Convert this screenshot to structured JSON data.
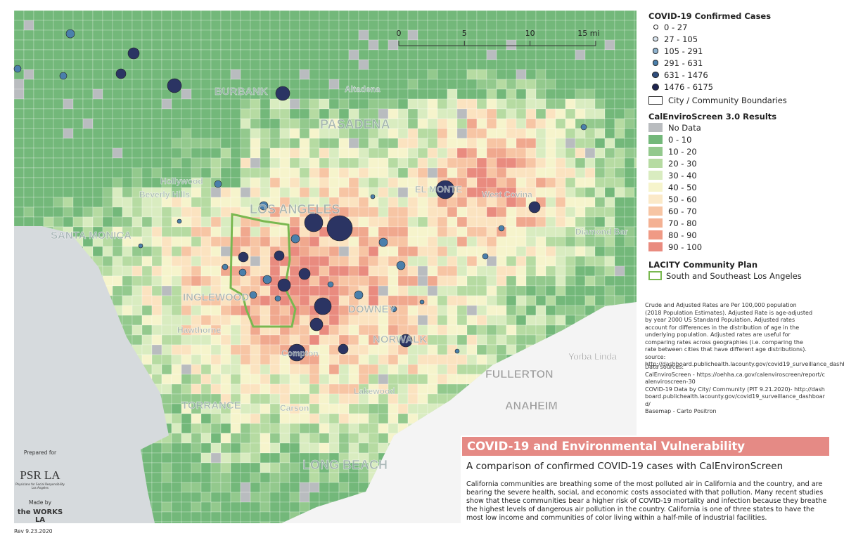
{
  "map": {
    "scale_bar": [
      "0",
      "5",
      "10",
      "15 mi"
    ],
    "places": [
      "BURBANK",
      "PASADENA",
      "Altadena",
      "Hollywood",
      "Beverly Hills",
      "LOS ANGELES",
      "SANTA MONICA",
      "EL MONTE",
      "West Covina",
      "Diamond Bar",
      "INGLEWOOD",
      "Hawthorne",
      "DOWNEY",
      "NORWALK",
      "Compton",
      "TORRANCE",
      "Carson",
      "Lakewood",
      "LONG BEACH",
      "Yorba Linda",
      "FULLERTON",
      "ANAHEIM"
    ]
  },
  "legend": {
    "covid_title": "COVID-19 Confirmed Cases",
    "covid_items": [
      "0 - 27",
      "27 - 105",
      "105 - 291",
      "291 - 631",
      "631 - 1476",
      "1476 - 6175"
    ],
    "boundaries": "City / Community Boundaries",
    "ces_title": "CalEnviroScreen 3.0 Results",
    "ces_items": [
      "No Data",
      "0 - 10",
      "10 - 20",
      "20 - 30",
      "30 - 40",
      "40 - 50",
      "50 - 60",
      "60 - 70",
      "70 - 80",
      "80 - 90",
      "90 - 100"
    ],
    "plan_title": "LACITY Community Plan",
    "plan_item": "South and Southeast Los Angeles"
  },
  "notes": {
    "rates": "Crude and Adjusted Rates are Per 100,000 population (2018 Population Estimates). Adjusted Rate is age-adjusted by year 2000 US Standard Population. Adjusted rates account for differences in the distribution of age in the underlying population. Adjusted rates are useful for comparing rates across geographies (i.e. comparing the rate between cities that have different age distributions). source: http://dashboard.publichealth.lacounty.gov/covid19_surveillance_dashboard/",
    "sources": [
      "Data sources:",
      "CalEnviroScreen - https://oehha.ca.gov/calenviroscreen/report/calenviroscreen-30",
      "COVID-19 Data by City/ Community (PIT 9.21.2020)- http://dashboard.publichealth.lacounty.gov/covid19_surveillance_dashboard/",
      "Basemap - Carto Positron"
    ]
  },
  "header": {
    "title": "COVID-19 and Environmental Vulnerability",
    "subtitle": "A comparison of confirmed COVID-19 cases with CalEnvironScreen",
    "body": "California communities are breathing some of the most polluted air in California and the country, and are bearing the severe health, social, and economic costs associated with that pollution. Many recent studies show that these communities bear a higher risk of COVID-19 mortality and infection because they breathe the highest levels of dangerous air pollution in the country. California is one of three states to have the most low income and communities of color living within a half-mile of industrial facilities."
  },
  "credits": {
    "prepared": "Prepared for",
    "psr": "PSR LA",
    "psr_sub": "Physicians for Social Responsibility Los Angeles",
    "made": "Made by",
    "works": "the WORKS LA",
    "rev": "Rev 9.23.2020"
  }
}
